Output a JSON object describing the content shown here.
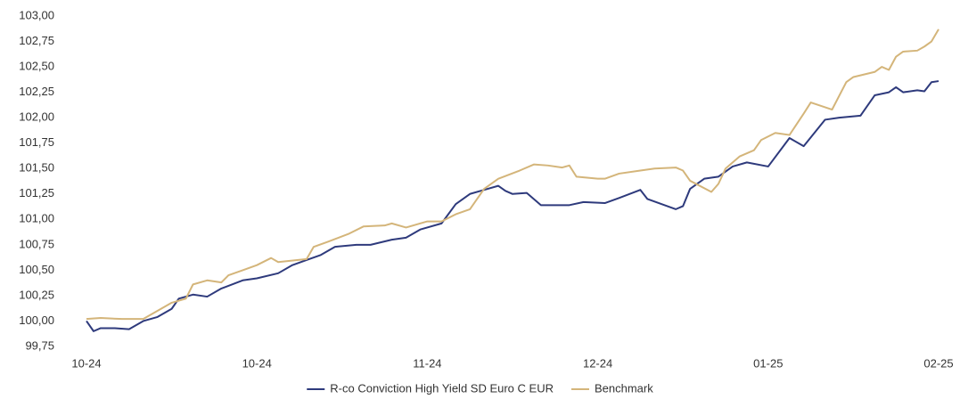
{
  "chart_data": {
    "type": "line",
    "xlim": [
      0,
      120
    ],
    "xticks": [
      {
        "value": 0,
        "label": "10-24"
      },
      {
        "value": 24,
        "label": "10-24"
      },
      {
        "value": 48,
        "label": "11-24"
      },
      {
        "value": 72,
        "label": "12-24"
      },
      {
        "value": 96,
        "label": "01-25"
      },
      {
        "value": 120,
        "label": "02-25"
      }
    ],
    "ylim": [
      99.75,
      103
    ],
    "yticks": [
      {
        "value": 99.75,
        "label": "99,75"
      },
      {
        "value": 100,
        "label": "100,00"
      },
      {
        "value": 100.25,
        "label": "100,25"
      },
      {
        "value": 100.5,
        "label": "100,50"
      },
      {
        "value": 100.75,
        "label": "100,75"
      },
      {
        "value": 101,
        "label": "101,00"
      },
      {
        "value": 101.25,
        "label": "101,25"
      },
      {
        "value": 101.5,
        "label": "101,50"
      },
      {
        "value": 101.75,
        "label": "101,75"
      },
      {
        "value": 102,
        "label": "102,00"
      },
      {
        "value": 102.25,
        "label": "102,25"
      },
      {
        "value": 102.5,
        "label": "102,50"
      },
      {
        "value": 102.75,
        "label": "102,75"
      },
      {
        "value": 103,
        "label": "103,00"
      }
    ],
    "grid": false,
    "legend": "bottom",
    "series": [
      {
        "name": "R-co Conviction High Yield SD Euro C EUR",
        "color": "#2e3a7c",
        "x": [
          0,
          1,
          2,
          4,
          6,
          8,
          10,
          12,
          13,
          15,
          17,
          19,
          22,
          24,
          27,
          29,
          31,
          33,
          35,
          38,
          40,
          43,
          45,
          47,
          50,
          52,
          54,
          56,
          58,
          59,
          60,
          62,
          64,
          68,
          70,
          73,
          75,
          78,
          79,
          81,
          83,
          84,
          85,
          87,
          89,
          91,
          93,
          96,
          99,
          101,
          104,
          106,
          109,
          111,
          113,
          114,
          115,
          117,
          118,
          119,
          120
        ],
        "values": [
          100.0,
          99.9,
          99.93,
          99.93,
          99.92,
          100.0,
          100.04,
          100.12,
          100.22,
          100.26,
          100.24,
          100.32,
          100.4,
          100.42,
          100.47,
          100.55,
          100.6,
          100.65,
          100.73,
          100.75,
          100.75,
          100.8,
          100.82,
          100.9,
          100.96,
          101.15,
          101.25,
          101.29,
          101.33,
          101.28,
          101.25,
          101.26,
          101.14,
          101.14,
          101.17,
          101.16,
          101.21,
          101.29,
          101.2,
          101.15,
          101.1,
          101.13,
          101.3,
          101.4,
          101.42,
          101.52,
          101.56,
          101.52,
          101.8,
          101.72,
          101.98,
          102.0,
          102.02,
          102.22,
          102.25,
          102.3,
          102.25,
          102.27,
          102.26,
          102.35,
          102.36
        ]
      },
      {
        "name": "Benchmark",
        "color": "#d4b57a",
        "x": [
          0,
          2,
          5,
          8,
          10,
          12,
          14,
          15,
          17,
          19,
          20,
          22,
          24,
          26,
          27,
          31,
          32,
          34,
          37,
          39,
          42,
          43,
          45,
          48,
          50,
          52,
          54,
          56,
          58,
          61,
          63,
          65,
          67,
          68,
          69,
          72,
          73,
          75,
          78,
          80,
          83,
          84,
          85,
          88,
          89,
          90,
          92,
          94,
          95,
          97,
          99,
          101,
          102,
          105,
          107,
          108,
          111,
          112,
          113,
          114,
          115,
          117,
          118,
          119,
          120
        ],
        "values": [
          100.02,
          100.03,
          100.02,
          100.02,
          100.1,
          100.18,
          100.22,
          100.36,
          100.4,
          100.38,
          100.45,
          100.5,
          100.55,
          100.62,
          100.58,
          100.61,
          100.73,
          100.78,
          100.86,
          100.93,
          100.94,
          100.96,
          100.92,
          100.98,
          100.98,
          101.05,
          101.1,
          101.3,
          101.4,
          101.48,
          101.54,
          101.53,
          101.51,
          101.53,
          101.42,
          101.4,
          101.4,
          101.45,
          101.48,
          101.5,
          101.51,
          101.48,
          101.38,
          101.27,
          101.35,
          101.5,
          101.62,
          101.68,
          101.78,
          101.85,
          101.83,
          102.04,
          102.15,
          102.08,
          102.35,
          102.4,
          102.45,
          102.5,
          102.47,
          102.6,
          102.65,
          102.66,
          102.7,
          102.75,
          102.87
        ]
      }
    ]
  }
}
